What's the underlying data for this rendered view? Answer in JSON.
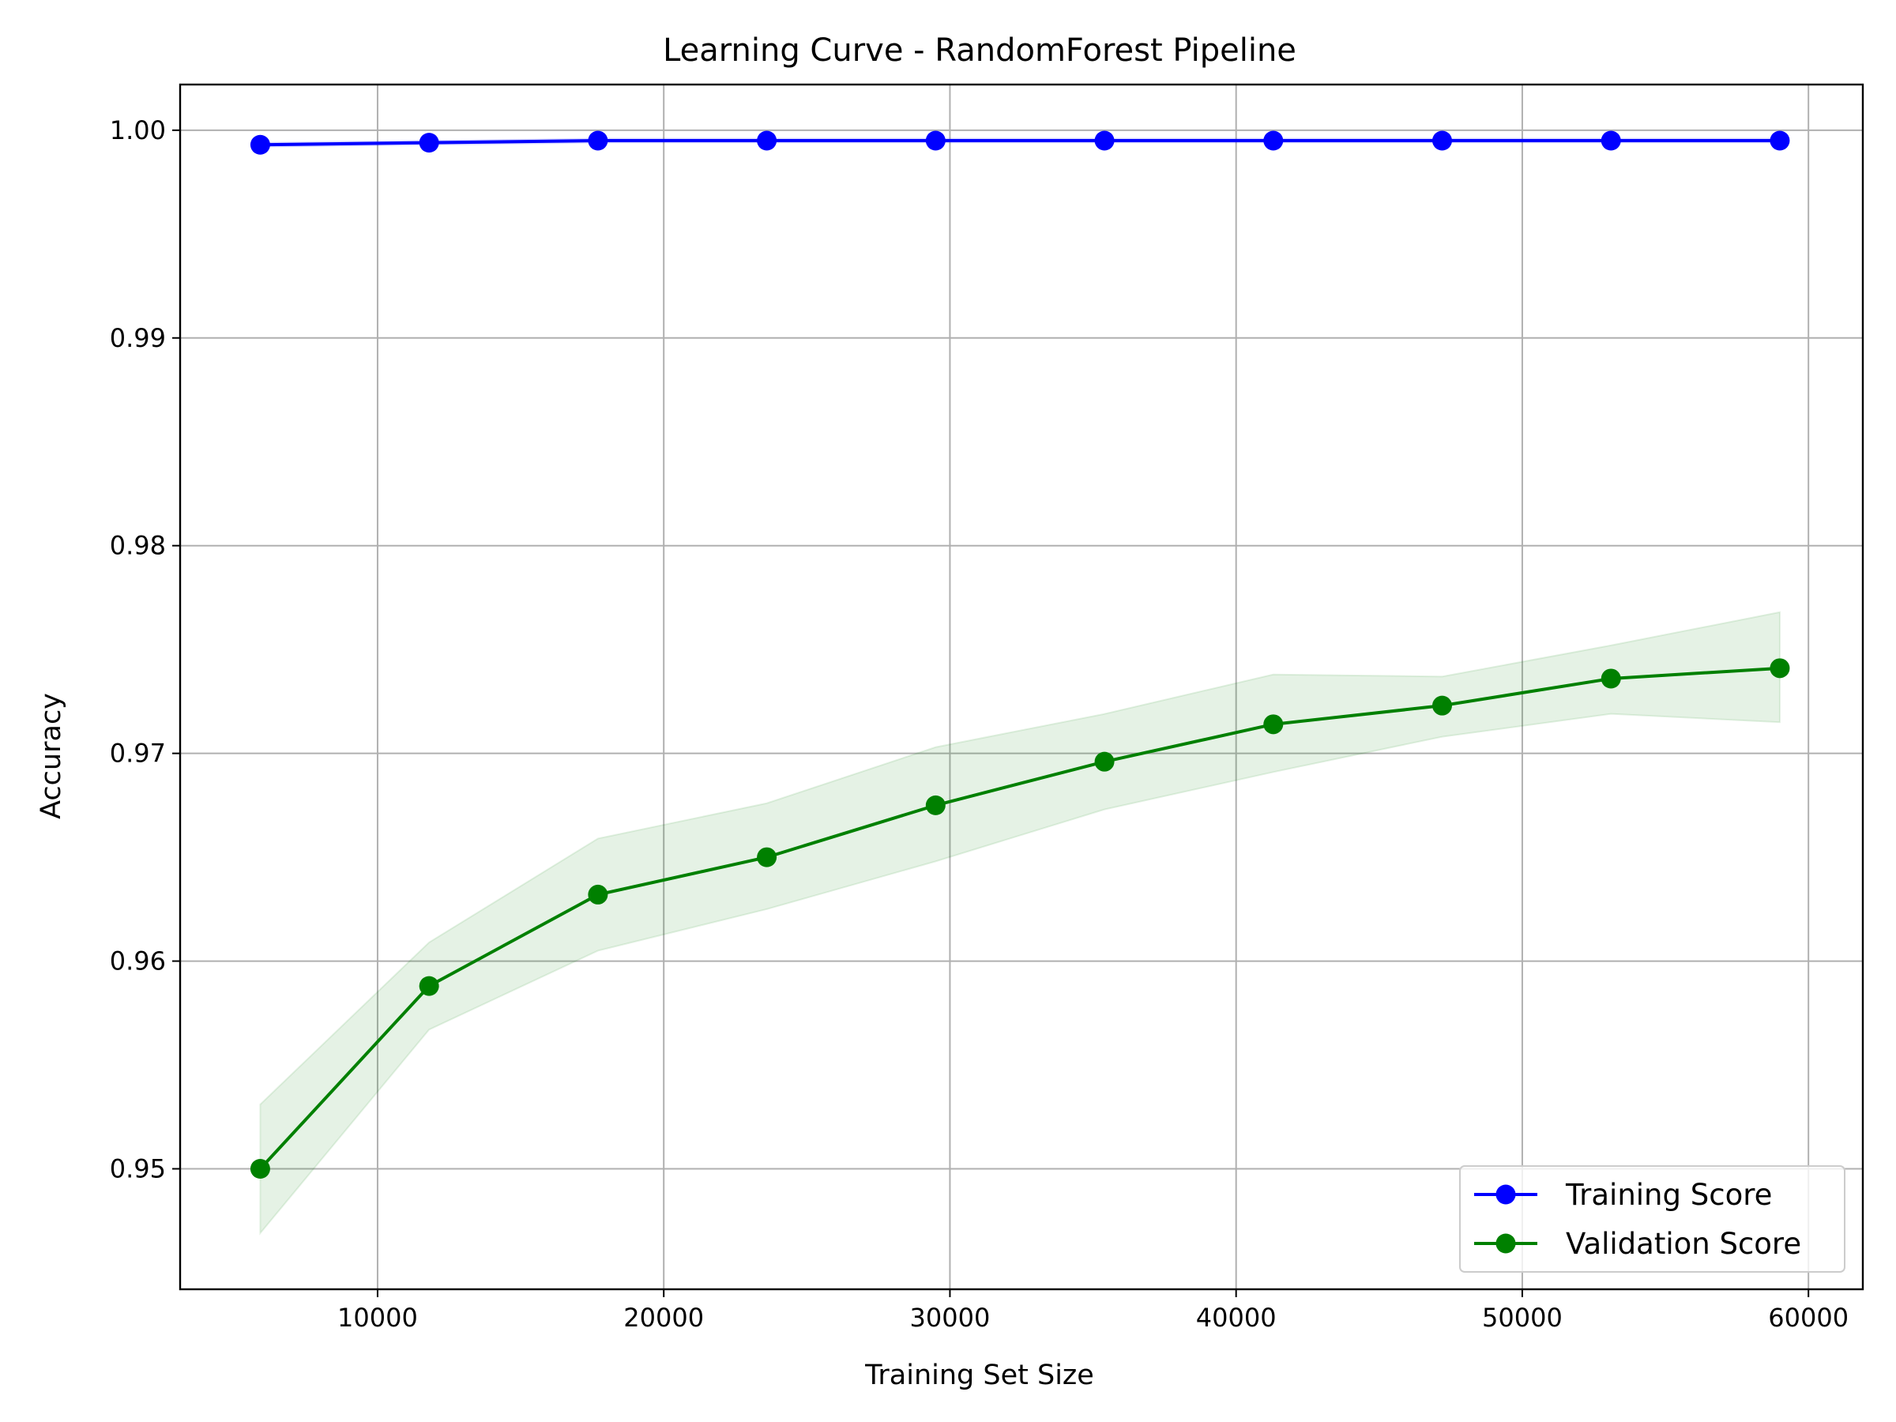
{
  "chart_data": {
    "type": "line",
    "title": "Learning Curve - RandomForest Pipeline",
    "xlabel": "Training Set Size",
    "ylabel": "Accuracy",
    "xlim": [
      3100,
      61900
    ],
    "ylim": [
      0.9442,
      1.0022
    ],
    "xticks": [
      10000,
      20000,
      30000,
      40000,
      50000,
      60000
    ],
    "xtick_labels": [
      "10000",
      "20000",
      "30000",
      "40000",
      "50000",
      "60000"
    ],
    "yticks": [
      0.95,
      0.96,
      0.97,
      0.98,
      0.99,
      1.0
    ],
    "ytick_labels": [
      "0.95",
      "0.96",
      "0.97",
      "0.98",
      "0.99",
      "1.00"
    ],
    "grid": true,
    "legend_position": "lower-right",
    "x": [
      5900,
      11800,
      17700,
      23600,
      29500,
      35400,
      41300,
      47200,
      53100,
      59000
    ],
    "series": [
      {
        "name": "Training Score",
        "color": "#0000ff",
        "values": [
          0.9993,
          0.9994,
          0.9995,
          0.9995,
          0.9995,
          0.9995,
          0.9995,
          0.9995,
          0.9995,
          0.9995
        ],
        "band_lower": [
          0.9992,
          0.9993,
          0.9994,
          0.9994,
          0.9994,
          0.9994,
          0.9994,
          0.9994,
          0.9994,
          0.9994
        ],
        "band_upper": [
          0.9994,
          0.9995,
          0.9996,
          0.9996,
          0.9996,
          0.9996,
          0.9996,
          0.9996,
          0.9996,
          0.9996
        ]
      },
      {
        "name": "Validation Score",
        "color": "#008000",
        "values": [
          0.95,
          0.9588,
          0.9632,
          0.965,
          0.9675,
          0.9696,
          0.9714,
          0.9723,
          0.9736,
          0.9741
        ],
        "band_lower": [
          0.9469,
          0.9567,
          0.9605,
          0.9625,
          0.9648,
          0.9673,
          0.9691,
          0.9708,
          0.9719,
          0.9715
        ],
        "band_upper": [
          0.9531,
          0.9609,
          0.9659,
          0.9676,
          0.9703,
          0.9719,
          0.9738,
          0.9737,
          0.9752,
          0.9768
        ],
        "band_color": "#008000"
      }
    ]
  }
}
